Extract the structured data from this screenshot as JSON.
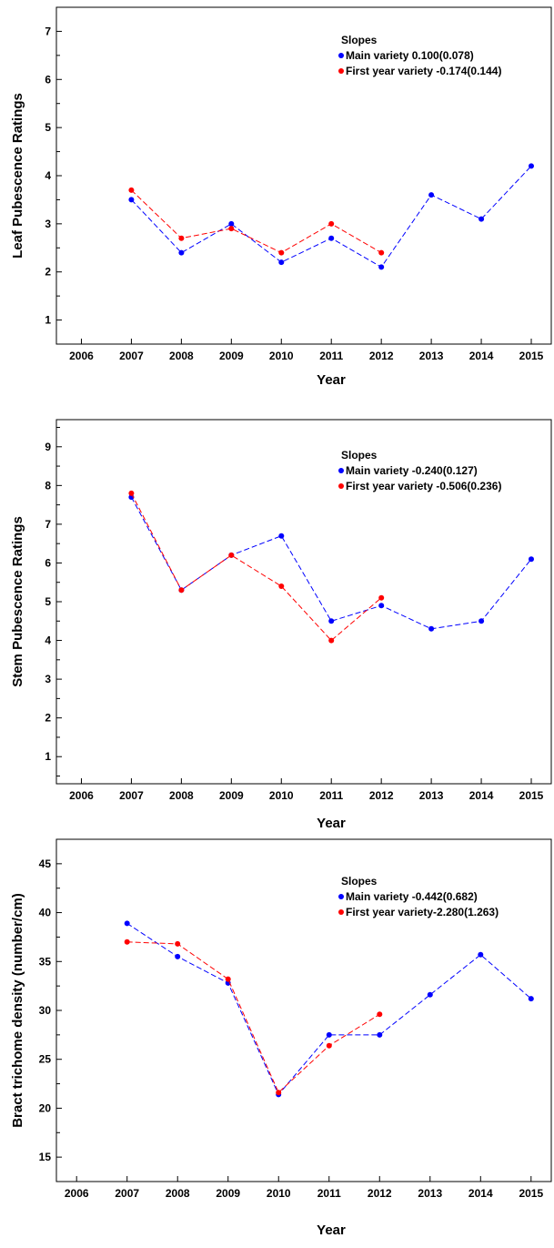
{
  "chart_data": [
    {
      "type": "line",
      "ylabel": "Leaf Pubescence Ratings",
      "xlabel": "Year",
      "categories": [
        "2006",
        "2007",
        "2008",
        "2009",
        "2010",
        "2011",
        "2012",
        "2013",
        "2014",
        "2015"
      ],
      "ylim": [
        0.5,
        7.5
      ],
      "yticks": [
        1,
        2,
        3,
        4,
        5,
        6,
        7
      ],
      "legend": {
        "title": "Slopes",
        "placement": "top-right",
        "entries": [
          "Main variety 0.100(0.078)",
          "First year variety -0.174(0.144)"
        ]
      },
      "series": [
        {
          "label": "Main variety",
          "color": "#0000ff",
          "points": [
            [
              2007,
              3.5
            ],
            [
              2008,
              2.4
            ],
            [
              2009,
              3.0
            ],
            [
              2010,
              2.2
            ],
            [
              2011,
              2.7
            ],
            [
              2012,
              2.1
            ],
            [
              2013,
              3.6
            ],
            [
              2014,
              3.1
            ],
            [
              2015,
              4.2
            ]
          ]
        },
        {
          "label": "First year variety",
          "color": "#ff0000",
          "points": [
            [
              2007,
              3.7
            ],
            [
              2008,
              2.7
            ],
            [
              2009,
              2.9
            ],
            [
              2010,
              2.4
            ],
            [
              2011,
              3.0
            ],
            [
              2012,
              2.4
            ]
          ]
        }
      ]
    },
    {
      "type": "line",
      "ylabel": "Stem Pubescence Ratings",
      "xlabel": "Year",
      "categories": [
        "2006",
        "2007",
        "2008",
        "2009",
        "2010",
        "2011",
        "2012",
        "2013",
        "2014",
        "2015"
      ],
      "ylim": [
        0.3,
        9.7
      ],
      "yticks": [
        1,
        2,
        3,
        4,
        5,
        6,
        7,
        8,
        9
      ],
      "legend": {
        "title": "Slopes",
        "placement": "top-right",
        "entries": [
          "Main variety -0.240(0.127)",
          "First year variety -0.506(0.236)"
        ]
      },
      "series": [
        {
          "label": "Main variety",
          "color": "#0000ff",
          "points": [
            [
              2007,
              7.7
            ],
            [
              2008,
              5.3
            ],
            [
              2009,
              6.2
            ],
            [
              2010,
              6.7
            ],
            [
              2011,
              4.5
            ],
            [
              2012,
              4.9
            ],
            [
              2013,
              4.3
            ],
            [
              2014,
              4.5
            ],
            [
              2015,
              6.1
            ]
          ]
        },
        {
          "label": "First year variety",
          "color": "#ff0000",
          "points": [
            [
              2007,
              7.8
            ],
            [
              2008,
              5.3
            ],
            [
              2009,
              6.2
            ],
            [
              2010,
              5.4
            ],
            [
              2011,
              4.0
            ],
            [
              2012,
              5.1
            ]
          ]
        }
      ]
    },
    {
      "type": "line",
      "ylabel": "Bract trichome density (number/cm)",
      "xlabel": "Year",
      "categories": [
        "2006",
        "2007",
        "2008",
        "2009",
        "2010",
        "2011",
        "2012",
        "2013",
        "2014",
        "2015"
      ],
      "ylim": [
        12.5,
        47.5
      ],
      "yticks": [
        15,
        20,
        25,
        30,
        35,
        40,
        45
      ],
      "legend": {
        "title": "Slopes",
        "placement": "top-right",
        "entries": [
          "Main variety -0.442(0.682)",
          "First year variety-2.280(1.263)"
        ]
      },
      "series": [
        {
          "label": "Main variety",
          "color": "#0000ff",
          "points": [
            [
              2007,
              38.9
            ],
            [
              2008,
              35.5
            ],
            [
              2009,
              32.8
            ],
            [
              2010,
              21.4
            ],
            [
              2011,
              27.5
            ],
            [
              2012,
              27.5
            ],
            [
              2013,
              31.6
            ],
            [
              2014,
              35.7
            ],
            [
              2015,
              31.2
            ]
          ]
        },
        {
          "label": "First year variety",
          "color": "#ff0000",
          "points": [
            [
              2007,
              37.0
            ],
            [
              2008,
              36.8
            ],
            [
              2009,
              33.2
            ],
            [
              2010,
              21.6
            ],
            [
              2011,
              26.4
            ],
            [
              2012,
              29.6
            ]
          ]
        }
      ]
    }
  ]
}
